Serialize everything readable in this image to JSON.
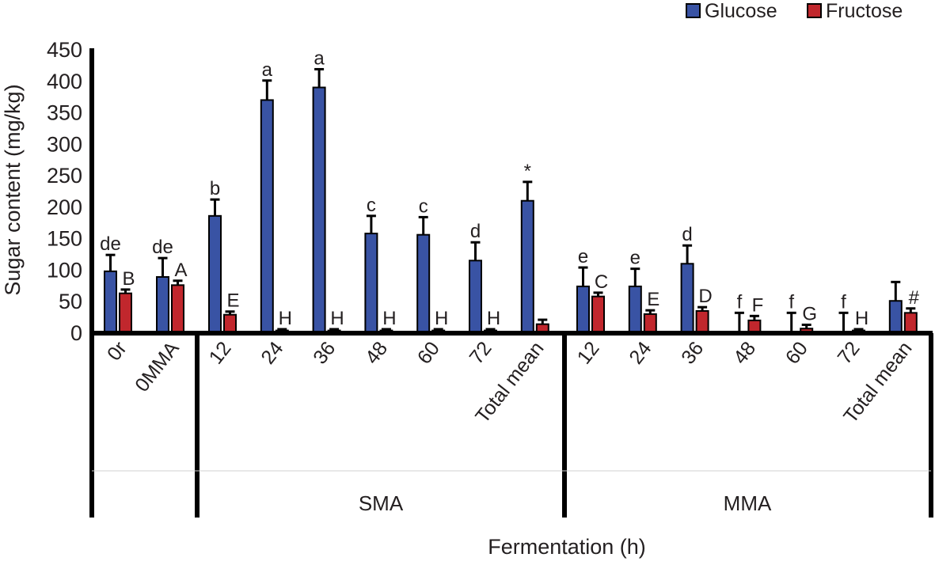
{
  "chart_data": {
    "type": "bar",
    "title": "",
    "xlabel": "Fermentation (h)",
    "ylabel": "Sugar content (mg/kg)",
    "ylim": [
      0,
      450
    ],
    "yticks": [
      0,
      50,
      100,
      150,
      200,
      250,
      300,
      350,
      400,
      450
    ],
    "grid": false,
    "legend_position": "top-right",
    "groups": [
      {
        "name": "",
        "categories": [
          "0r",
          "0MMA"
        ]
      },
      {
        "name": "SMA",
        "categories": [
          "12",
          "24",
          "36",
          "48",
          "60",
          "72",
          "Total mean"
        ]
      },
      {
        "name": "MMA",
        "categories": [
          "12",
          "24",
          "36",
          "48",
          "60",
          "72",
          "Total mean"
        ]
      }
    ],
    "categories": [
      "0r",
      "0MMA",
      "SMA 12",
      "SMA 24",
      "SMA 36",
      "SMA 48",
      "SMA 60",
      "SMA 72",
      "SMA Total mean",
      "MMA 12",
      "MMA 24",
      "MMA 36",
      "MMA 48",
      "MMA 60",
      "MMA 72",
      "MMA Total mean"
    ],
    "series": [
      {
        "name": "Glucose",
        "color": "#3953a4",
        "values": [
          97,
          88,
          185,
          369,
          389,
          157,
          155,
          114,
          209,
          73,
          73,
          109,
          0,
          0,
          0,
          50
        ],
        "error": [
          26,
          30,
          26,
          31,
          29,
          28,
          28,
          29,
          30,
          30,
          28,
          29,
          31,
          31,
          31,
          30
        ],
        "labels": [
          "de",
          "de",
          "b",
          "a",
          "a",
          "c",
          "c",
          "d",
          "*",
          "e",
          "e",
          "d",
          "f",
          "f",
          "f",
          ""
        ]
      },
      {
        "name": "Fructose",
        "color": "#c1272d",
        "values": [
          62,
          75,
          28,
          3,
          3,
          3,
          3,
          3,
          13,
          57,
          29,
          34,
          19,
          6,
          3,
          31
        ],
        "error": [
          6,
          7,
          5,
          2,
          2,
          2,
          2,
          2,
          7,
          6,
          6,
          6,
          7,
          6,
          2,
          7
        ],
        "labels": [
          "B",
          "A",
          "E",
          "H",
          "H",
          "H",
          "H",
          "H",
          "",
          "C",
          "E",
          "D",
          "F",
          "G",
          "H",
          "#"
        ]
      }
    ]
  }
}
